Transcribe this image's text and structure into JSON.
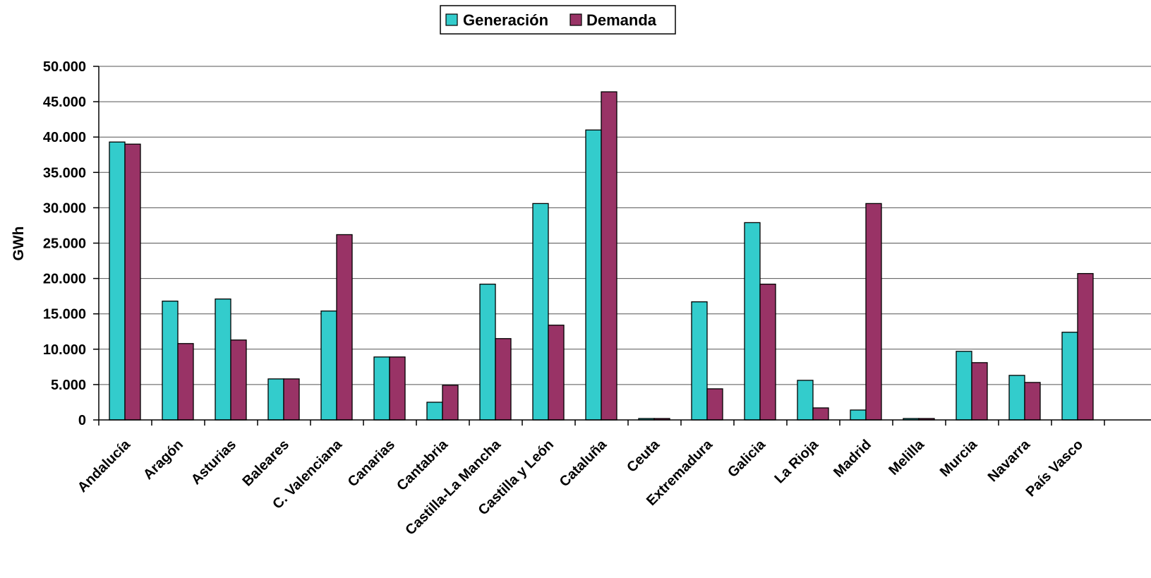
{
  "chart_data": {
    "type": "bar",
    "ylabel": "GWh",
    "xlabel": "",
    "ylim": [
      0,
      50000
    ],
    "yticks": [
      0,
      5000,
      10000,
      15000,
      20000,
      25000,
      30000,
      35000,
      40000,
      45000,
      50000
    ],
    "ytick_labels": [
      "0",
      "5.000",
      "10.000",
      "15.000",
      "20.000",
      "25.000",
      "30.000",
      "35.000",
      "40.000",
      "45.000",
      "50.000"
    ],
    "grid": true,
    "legend_position": "top-center",
    "categories": [
      "Andalucía",
      "Aragón",
      "Asturias",
      "Baleares",
      "C. Valenciana",
      "Canarias",
      "Cantabria",
      "Castilla-La Mancha",
      "Castilla y León",
      "Cataluña",
      "Ceuta",
      "Extremadura",
      "Galicia",
      "La Rioja",
      "Madrid",
      "Melilla",
      "Murcia",
      "Navarra",
      "País Vasco"
    ],
    "series": [
      {
        "name": "Generación",
        "color": "#33CCCC",
        "values": [
          39300,
          16800,
          17100,
          5800,
          15400,
          8900,
          2500,
          19200,
          30600,
          41000,
          200,
          16700,
          27900,
          5600,
          1400,
          200,
          9700,
          6300,
          12400
        ]
      },
      {
        "name": "Demanda",
        "color": "#993366",
        "values": [
          39000,
          10800,
          11300,
          5800,
          26200,
          8900,
          4900,
          11500,
          13400,
          46400,
          200,
          4400,
          19200,
          1700,
          30600,
          200,
          8100,
          5300,
          20700
        ]
      }
    ]
  }
}
